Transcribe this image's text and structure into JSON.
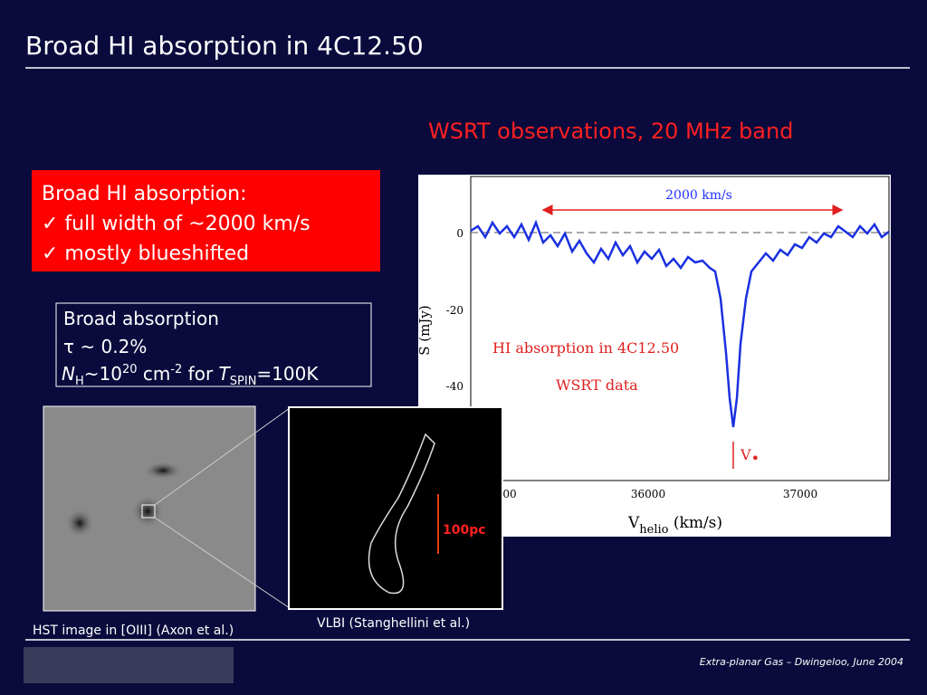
{
  "header": {
    "title": "Broad HI absorption in 4C12.50",
    "subtitle": "WSRT observations, 20 MHz band"
  },
  "highlight": {
    "lines": [
      "Broad HI absorption:",
      "✓ full width of ~2000 km/s",
      "✓ mostly blueshifted"
    ]
  },
  "info": {
    "line1": "Broad absorption",
    "line2": "τ ~ 0.2%",
    "line3": {
      "n": "N",
      "h": "H",
      "approx": "~10",
      "exp": "20",
      "cm": " cm",
      "cmexp": "-2",
      "for": " for ",
      "t": "T",
      "spin": "SPIN",
      "temp": "=100K"
    }
  },
  "plot": {
    "ylabel": "S (mJy)",
    "xlabel": {
      "v": "V",
      "sub": "helio",
      "unit": " (km/s)"
    },
    "yticks": [
      "0",
      "-20",
      "-40"
    ],
    "xticks": [
      "00",
      "36000",
      "37000"
    ],
    "width_label": "2000 km/s",
    "plot_title": "HI absorption in 4C12.50",
    "plot_subtitle": "WSRT data",
    "vmark": {
      "v": "V",
      "star": "•"
    }
  },
  "images": {
    "hst_caption": "HST image in [OIII] (Axon et al.)",
    "vlbi_caption": "VLBI (Stanghellini et al.)",
    "scale": "100pc"
  },
  "footer": {
    "text": "Extra-planar Gas – Dwingeloo, June 2004"
  }
}
